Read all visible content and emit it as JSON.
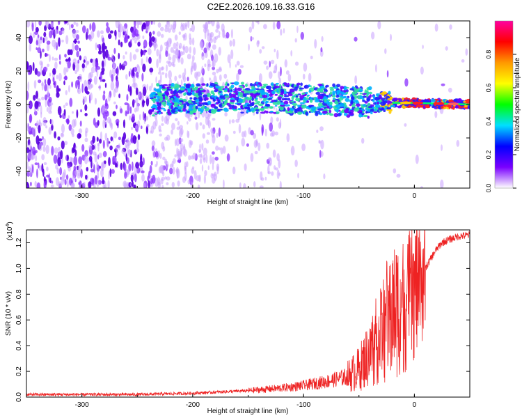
{
  "title": "C2E2.2026.109.16.33.G16",
  "chart_data": [
    {
      "type": "heatmap",
      "xlabel": "Height of straight line (km)",
      "ylabel": "Frequency (Hz)",
      "xlim": [
        -350,
        50
      ],
      "ylim": [
        -50,
        50
      ],
      "xticks": [
        -300,
        -200,
        -100,
        0
      ],
      "yticks": [
        -40,
        -20,
        0,
        20,
        40
      ],
      "signal_track": [
        {
          "x": -235,
          "y": 3
        },
        {
          "x": -150,
          "y": 4
        },
        {
          "x": -80,
          "y": 3
        },
        {
          "x": -40,
          "y": 1
        },
        {
          "x": -20,
          "y": 1
        },
        {
          "x": 0,
          "y": 1
        },
        {
          "x": 50,
          "y": 0
        }
      ],
      "noise_extent_km": -175,
      "colorbar": {
        "label": "Normalized spectral amplitude",
        "range": [
          0,
          1
        ],
        "ticks": [
          0.0,
          0.2,
          0.4,
          0.6,
          0.8
        ],
        "colors": [
          "#ffffff",
          "#7a00ff",
          "#0000ff",
          "#00e0ff",
          "#00ff00",
          "#ffff00",
          "#ff9900",
          "#ff0000",
          "#ff00a0"
        ]
      }
    },
    {
      "type": "line",
      "xlabel": "Height of straight line (km)",
      "ylabel": "SNR (10 * v/v)",
      "scale_label": "(x10",
      "scale_exp": "4",
      "xlim": [
        -350,
        50
      ],
      "ylim": [
        0,
        1.3
      ],
      "xticks": [
        -300,
        -200,
        -100,
        0
      ],
      "yticks": [
        0.0,
        0.2,
        0.4,
        0.6,
        0.8,
        1.0,
        1.2
      ],
      "series": [
        {
          "name": "SNR",
          "color": "#ee2222",
          "x": [
            -350,
            -300,
            -250,
            -200,
            -150,
            -120,
            -100,
            -80,
            -60,
            -50,
            -40,
            -30,
            -25,
            -20,
            -15,
            -10,
            -5,
            0,
            5,
            10,
            15,
            20,
            25,
            30,
            40,
            50
          ],
          "y": [
            0.02,
            0.02,
            0.02,
            0.03,
            0.05,
            0.07,
            0.09,
            0.12,
            0.16,
            0.22,
            0.35,
            0.5,
            0.6,
            0.65,
            0.7,
            0.72,
            0.75,
            0.82,
            0.9,
            1.0,
            1.08,
            1.15,
            1.2,
            1.22,
            1.25,
            1.26
          ]
        }
      ]
    }
  ]
}
